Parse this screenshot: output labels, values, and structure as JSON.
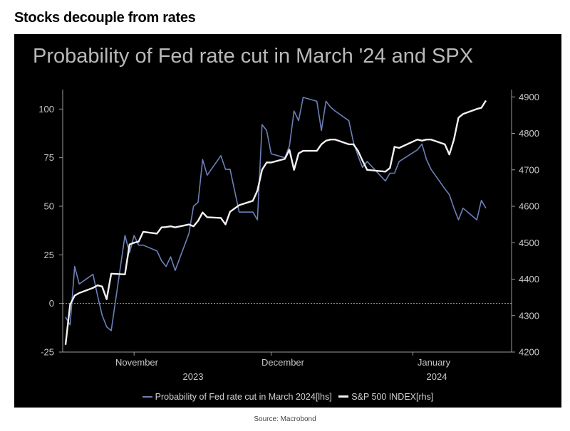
{
  "headline": "Stocks decouple from rates",
  "source": "Source: Macrobond",
  "colors": {
    "background": "#000000",
    "fed_series": "#6c80b8",
    "spx_series": "#f2f2f2",
    "axis_text": "#c8c8c8"
  },
  "chart_data": {
    "type": "line",
    "title": "Probability of Fed rate cut in March '24 and SPX",
    "xlabel": "",
    "x_tick_labels": [
      {
        "label": "November",
        "year": "2023"
      },
      {
        "label": "December",
        "year": ""
      },
      {
        "label": "January",
        "year": "2024"
      }
    ],
    "year_labels": [
      "2023",
      "2024"
    ],
    "left_axis": {
      "ylim": [
        -25,
        110
      ],
      "ticks": [
        -25,
        0,
        25,
        50,
        75,
        100
      ]
    },
    "right_axis": {
      "ylim": [
        4200,
        4920
      ],
      "ticks": [
        4200,
        4300,
        4400,
        4500,
        4600,
        4700,
        4800,
        4900
      ]
    },
    "zero_line": "dashed",
    "legend_position": "bottom",
    "series": [
      {
        "name": "Probability of Fed rate cut in March 2024[lhs]",
        "axis": "left",
        "points": [
          [
            "2023-10-17",
            -7
          ],
          [
            "2023-10-18",
            -11
          ],
          [
            "2023-10-19",
            19
          ],
          [
            "2023-10-20",
            10
          ],
          [
            "2023-10-23",
            15
          ],
          [
            "2023-10-24",
            4
          ],
          [
            "2023-10-25",
            -6
          ],
          [
            "2023-10-26",
            -12
          ],
          [
            "2023-10-27",
            -14
          ],
          [
            "2023-10-30",
            35
          ],
          [
            "2023-10-31",
            26
          ],
          [
            "2023-11-01",
            35
          ],
          [
            "2023-11-02",
            30
          ],
          [
            "2023-11-03",
            30
          ],
          [
            "2023-11-06",
            27
          ],
          [
            "2023-11-07",
            22
          ],
          [
            "2023-11-08",
            19
          ],
          [
            "2023-11-09",
            24
          ],
          [
            "2023-11-10",
            17
          ],
          [
            "2023-11-13",
            36
          ],
          [
            "2023-11-14",
            50
          ],
          [
            "2023-11-15",
            52
          ],
          [
            "2023-11-16",
            74
          ],
          [
            "2023-11-17",
            66
          ],
          [
            "2023-11-20",
            76
          ],
          [
            "2023-11-21",
            69
          ],
          [
            "2023-11-22",
            69
          ],
          [
            "2023-11-24",
            47
          ],
          [
            "2023-11-27",
            47
          ],
          [
            "2023-11-28",
            43
          ],
          [
            "2023-11-29",
            92
          ],
          [
            "2023-11-30",
            89
          ],
          [
            "2023-12-01",
            77
          ],
          [
            "2023-12-04",
            75
          ],
          [
            "2023-12-05",
            81
          ],
          [
            "2023-12-06",
            99
          ],
          [
            "2023-12-07",
            94
          ],
          [
            "2023-12-08",
            106
          ],
          [
            "2023-12-11",
            104
          ],
          [
            "2023-12-12",
            89
          ],
          [
            "2023-12-13",
            104
          ],
          [
            "2023-12-14",
            101
          ],
          [
            "2023-12-15",
            99
          ],
          [
            "2023-12-18",
            94
          ],
          [
            "2023-12-19",
            83
          ],
          [
            "2023-12-20",
            76
          ],
          [
            "2023-12-21",
            70
          ],
          [
            "2023-12-22",
            73
          ],
          [
            "2023-12-26",
            63
          ],
          [
            "2023-12-27",
            67
          ],
          [
            "2023-12-28",
            67
          ],
          [
            "2023-12-29",
            73
          ],
          [
            "2024-01-02",
            79
          ],
          [
            "2024-01-03",
            82
          ],
          [
            "2024-01-04",
            74
          ],
          [
            "2024-01-05",
            69
          ],
          [
            "2024-01-08",
            59
          ],
          [
            "2024-01-09",
            56
          ],
          [
            "2024-01-10",
            49
          ],
          [
            "2024-01-11",
            43
          ],
          [
            "2024-01-12",
            49
          ],
          [
            "2024-01-15",
            43
          ],
          [
            "2024-01-16",
            53
          ],
          [
            "2024-01-17",
            49
          ]
        ]
      },
      {
        "name": "S&P 500 INDEX[rhs]",
        "axis": "right",
        "points": [
          [
            "2023-10-17",
            4220
          ],
          [
            "2023-10-18",
            4330
          ],
          [
            "2023-10-19",
            4355
          ],
          [
            "2023-10-20",
            4362
          ],
          [
            "2023-10-23",
            4376
          ],
          [
            "2023-10-24",
            4383
          ],
          [
            "2023-10-25",
            4380
          ],
          [
            "2023-10-26",
            4345
          ],
          [
            "2023-10-27",
            4415
          ],
          [
            "2023-10-30",
            4413
          ],
          [
            "2023-10-31",
            4495
          ],
          [
            "2023-11-01",
            4500
          ],
          [
            "2023-11-02",
            4503
          ],
          [
            "2023-11-03",
            4530
          ],
          [
            "2023-11-06",
            4525
          ],
          [
            "2023-11-07",
            4542
          ],
          [
            "2023-11-08",
            4543
          ],
          [
            "2023-11-09",
            4545
          ],
          [
            "2023-11-10",
            4542
          ],
          [
            "2023-11-13",
            4550
          ],
          [
            "2023-11-14",
            4545
          ],
          [
            "2023-11-15",
            4560
          ],
          [
            "2023-11-16",
            4583
          ],
          [
            "2023-11-17",
            4570
          ],
          [
            "2023-11-20",
            4568
          ],
          [
            "2023-11-21",
            4550
          ],
          [
            "2023-11-22",
            4585
          ],
          [
            "2023-11-24",
            4603
          ],
          [
            "2023-11-27",
            4615
          ],
          [
            "2023-11-28",
            4643
          ],
          [
            "2023-11-29",
            4700
          ],
          [
            "2023-11-30",
            4720
          ],
          [
            "2023-12-01",
            4720
          ],
          [
            "2023-12-04",
            4730
          ],
          [
            "2023-12-05",
            4755
          ],
          [
            "2023-12-06",
            4700
          ],
          [
            "2023-12-07",
            4745
          ],
          [
            "2023-12-08",
            4752
          ],
          [
            "2023-12-11",
            4752
          ],
          [
            "2023-12-12",
            4770
          ],
          [
            "2023-12-13",
            4780
          ],
          [
            "2023-12-14",
            4783
          ],
          [
            "2023-12-15",
            4783
          ],
          [
            "2023-12-18",
            4770
          ],
          [
            "2023-12-19",
            4770
          ],
          [
            "2023-12-20",
            4752
          ],
          [
            "2023-12-21",
            4725
          ],
          [
            "2023-12-22",
            4700
          ],
          [
            "2023-12-26",
            4695
          ],
          [
            "2023-12-27",
            4705
          ],
          [
            "2023-12-28",
            4763
          ],
          [
            "2023-12-29",
            4760
          ],
          [
            "2024-01-02",
            4783
          ],
          [
            "2024-01-03",
            4780
          ],
          [
            "2024-01-04",
            4783
          ],
          [
            "2024-01-05",
            4783
          ],
          [
            "2024-01-08",
            4770
          ],
          [
            "2024-01-09",
            4742
          ],
          [
            "2024-01-10",
            4783
          ],
          [
            "2024-01-11",
            4843
          ],
          [
            "2024-01-12",
            4853
          ],
          [
            "2024-01-15",
            4867
          ],
          [
            "2024-01-16",
            4870
          ],
          [
            "2024-01-17",
            4890
          ]
        ]
      }
    ]
  }
}
